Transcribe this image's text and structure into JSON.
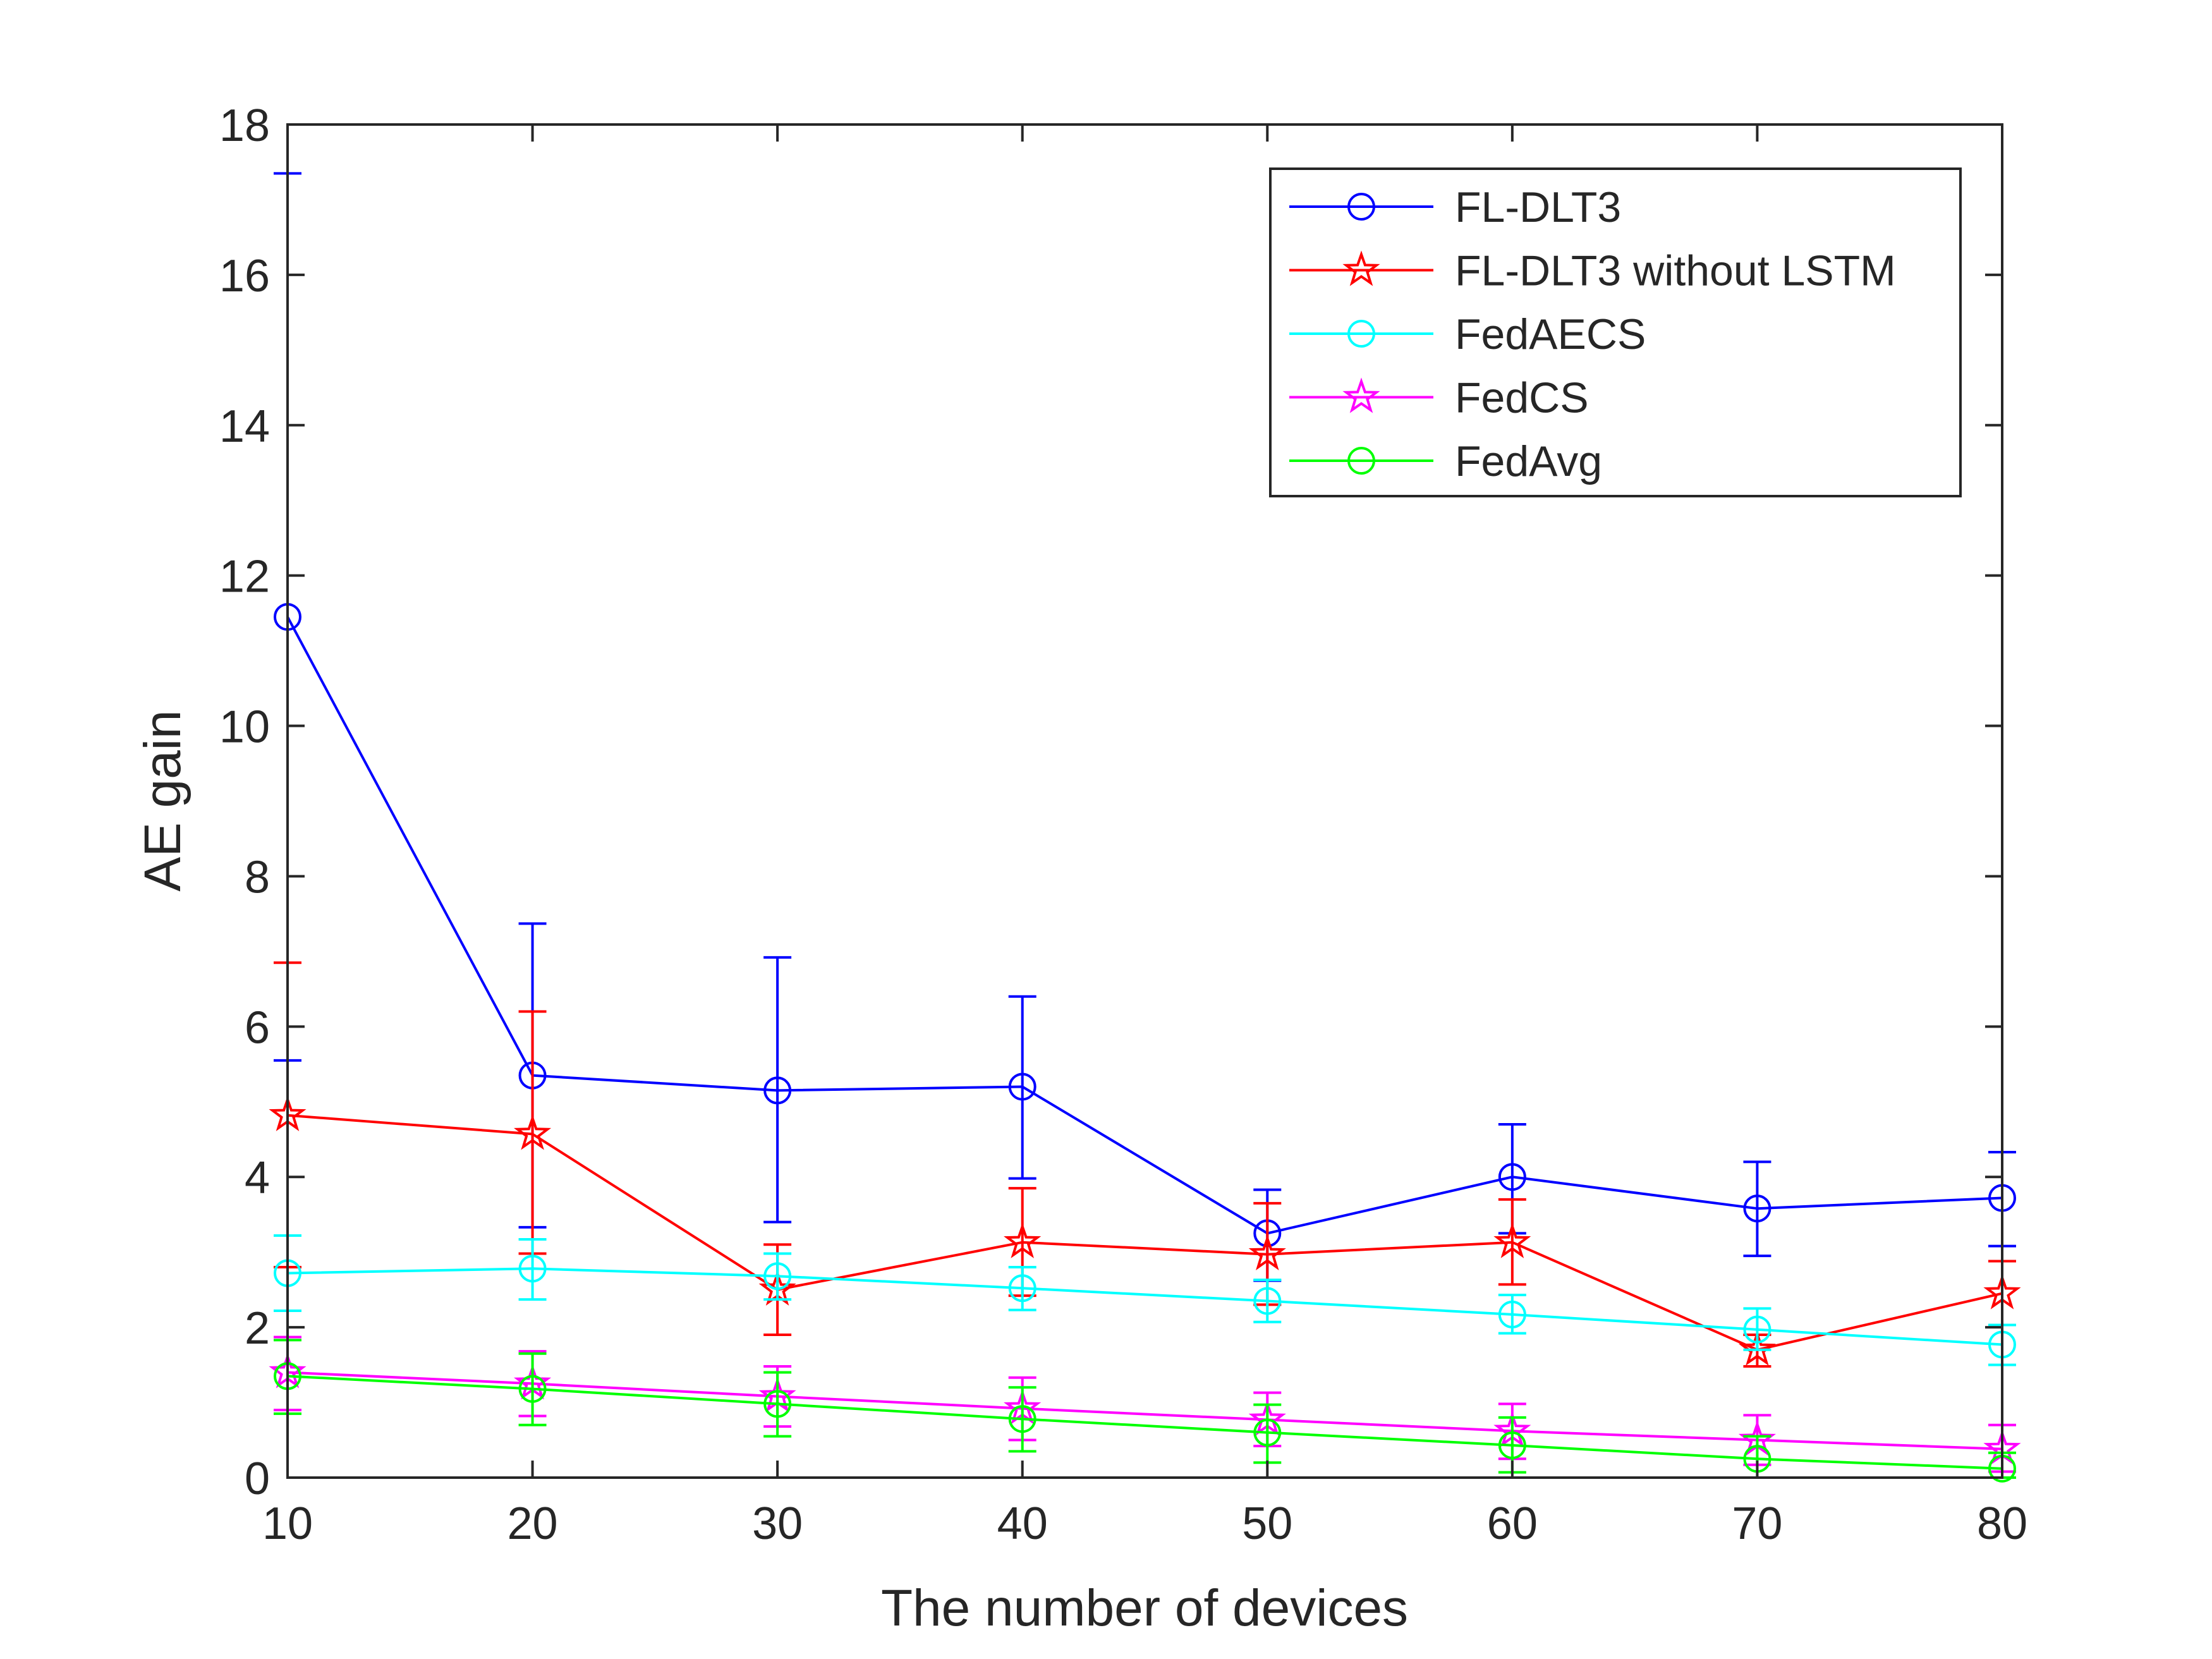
{
  "chart_data": {
    "type": "line",
    "title": "",
    "xlabel": "The number of devices",
    "ylabel": "AE gain",
    "x": [
      10,
      20,
      30,
      40,
      50,
      60,
      70,
      80
    ],
    "xlim": [
      10,
      80
    ],
    "ylim": [
      0,
      18
    ],
    "xticks": [
      10,
      20,
      30,
      40,
      50,
      60,
      70,
      80
    ],
    "yticks": [
      0,
      2,
      4,
      6,
      8,
      10,
      12,
      14,
      16,
      18
    ],
    "grid": false,
    "legend_position": "top-right",
    "series": [
      {
        "name": "FL-DLT3",
        "color": "#0000ff",
        "marker": "circle",
        "values": [
          11.45,
          5.35,
          5.15,
          5.2,
          3.25,
          4.0,
          3.58,
          3.72
        ],
        "err_low": [
          5.55,
          3.33,
          3.4,
          3.98,
          2.62,
          3.25,
          2.95,
          3.08
        ],
        "err_high": [
          17.35,
          7.37,
          6.92,
          6.4,
          3.83,
          4.7,
          4.2,
          4.33
        ]
      },
      {
        "name": "FL-DLT3 without LSTM",
        "color": "#ff0000",
        "marker": "star",
        "values": [
          4.82,
          4.57,
          2.5,
          3.13,
          2.97,
          3.13,
          1.7,
          2.45
        ],
        "err_low": [
          2.8,
          2.98,
          1.9,
          2.42,
          2.3,
          2.57,
          1.48,
          2.03
        ],
        "err_high": [
          6.85,
          6.2,
          3.1,
          3.85,
          3.65,
          3.7,
          1.9,
          2.88
        ]
      },
      {
        "name": "FedAECS",
        "color": "#00ffff",
        "marker": "circle",
        "values": [
          2.72,
          2.78,
          2.68,
          2.52,
          2.35,
          2.17,
          1.97,
          1.77
        ],
        "err_low": [
          2.22,
          2.37,
          2.37,
          2.23,
          2.07,
          1.92,
          1.7,
          1.5
        ],
        "err_high": [
          3.22,
          3.17,
          2.98,
          2.8,
          2.63,
          2.43,
          2.25,
          2.03
        ]
      },
      {
        "name": "FedCS",
        "color": "#ff00ff",
        "marker": "star",
        "values": [
          1.4,
          1.25,
          1.08,
          0.92,
          0.77,
          0.62,
          0.5,
          0.38
        ],
        "err_low": [
          0.9,
          0.82,
          0.68,
          0.5,
          0.42,
          0.25,
          0.17,
          0.08
        ],
        "err_high": [
          1.87,
          1.68,
          1.48,
          1.33,
          1.13,
          0.98,
          0.83,
          0.7
        ]
      },
      {
        "name": "FedAvg",
        "color": "#00ff00",
        "marker": "circle",
        "values": [
          1.35,
          1.18,
          0.98,
          0.78,
          0.6,
          0.43,
          0.25,
          0.12
        ],
        "err_low": [
          0.85,
          0.7,
          0.55,
          0.35,
          0.2,
          0.07,
          0.0,
          0.0
        ],
        "err_high": [
          1.83,
          1.65,
          1.4,
          1.2,
          0.97,
          0.8,
          0.55,
          0.33
        ]
      }
    ]
  }
}
